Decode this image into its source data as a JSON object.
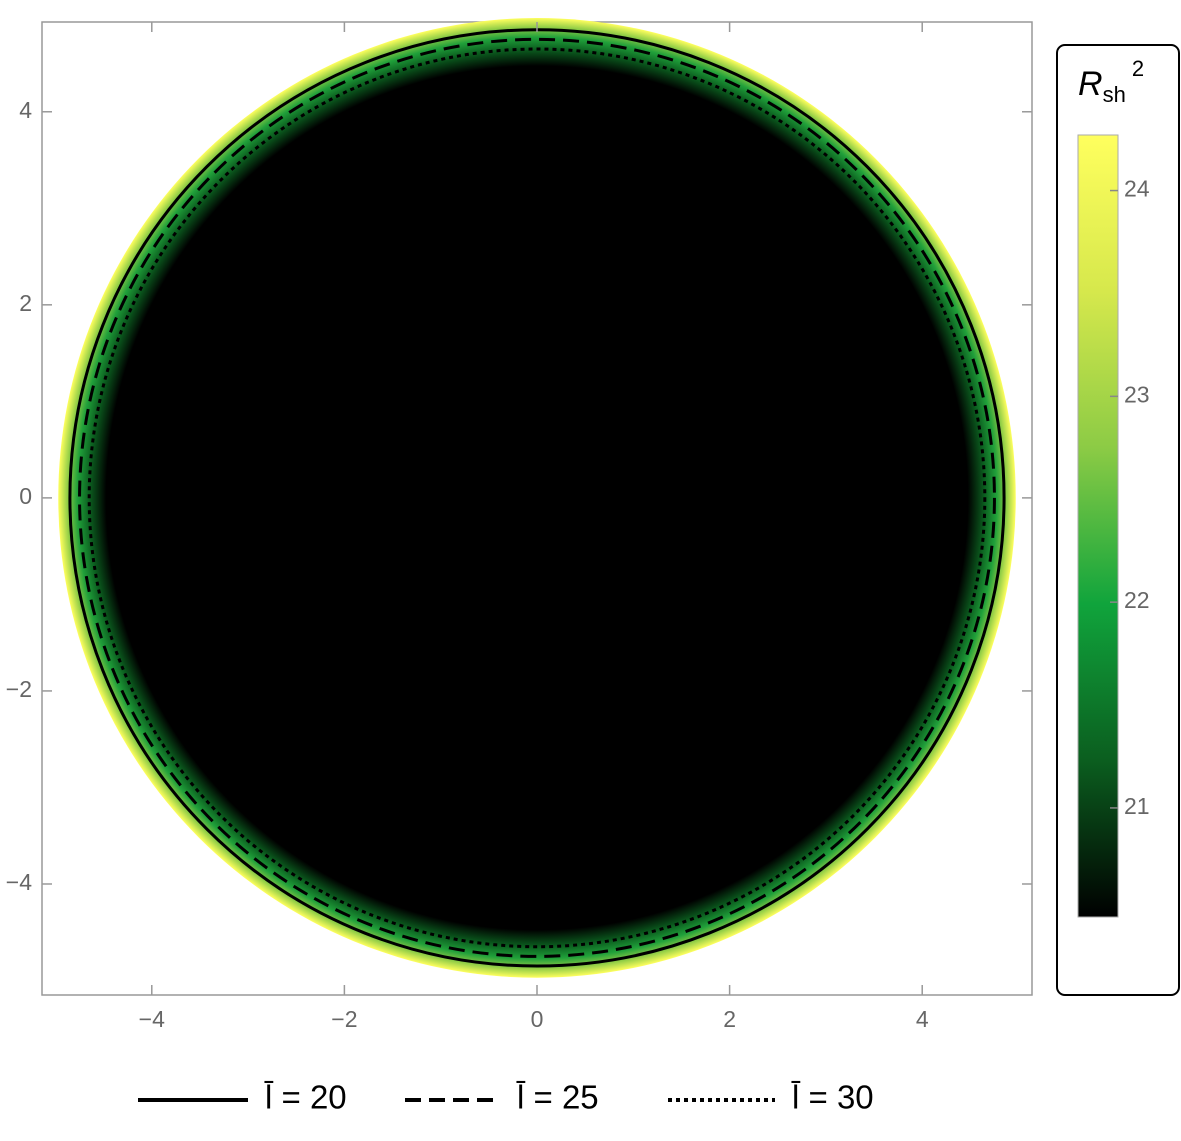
{
  "chart_data": {
    "type": "contour",
    "xlim": [
      -5.14,
      5.14
    ],
    "ylim": [
      -5.15,
      4.93
    ],
    "xticks": [
      {
        "value": -4,
        "label": "−4"
      },
      {
        "value": -2,
        "label": "−2"
      },
      0,
      2,
      4
    ],
    "yticks": [
      {
        "value": -4,
        "label": "−4"
      },
      {
        "value": -2,
        "label": "−2"
      },
      0,
      2,
      4
    ],
    "series": [
      {
        "name": "l̄ = 20",
        "radius": 4.85,
        "dash": "solid",
        "color": "#000000"
      },
      {
        "name": "l̄ = 25",
        "radius": 4.75,
        "dash": "dashed",
        "color": "#000000"
      },
      {
        "name": "l̄ = 30",
        "radius": 4.65,
        "dash": "dotted",
        "color": "#000000"
      }
    ],
    "colorbar": {
      "title": {
        "base": "R",
        "subscript": "sh",
        "superscript": "2"
      },
      "clim": [
        20.47,
        24.27
      ],
      "ticks": [
        21,
        22,
        23,
        24
      ],
      "colormap": [
        "#000000",
        "#0b5e1f",
        "#10a43c",
        "#8ccb45",
        "#d6e84c",
        "#ffff5e"
      ]
    }
  }
}
